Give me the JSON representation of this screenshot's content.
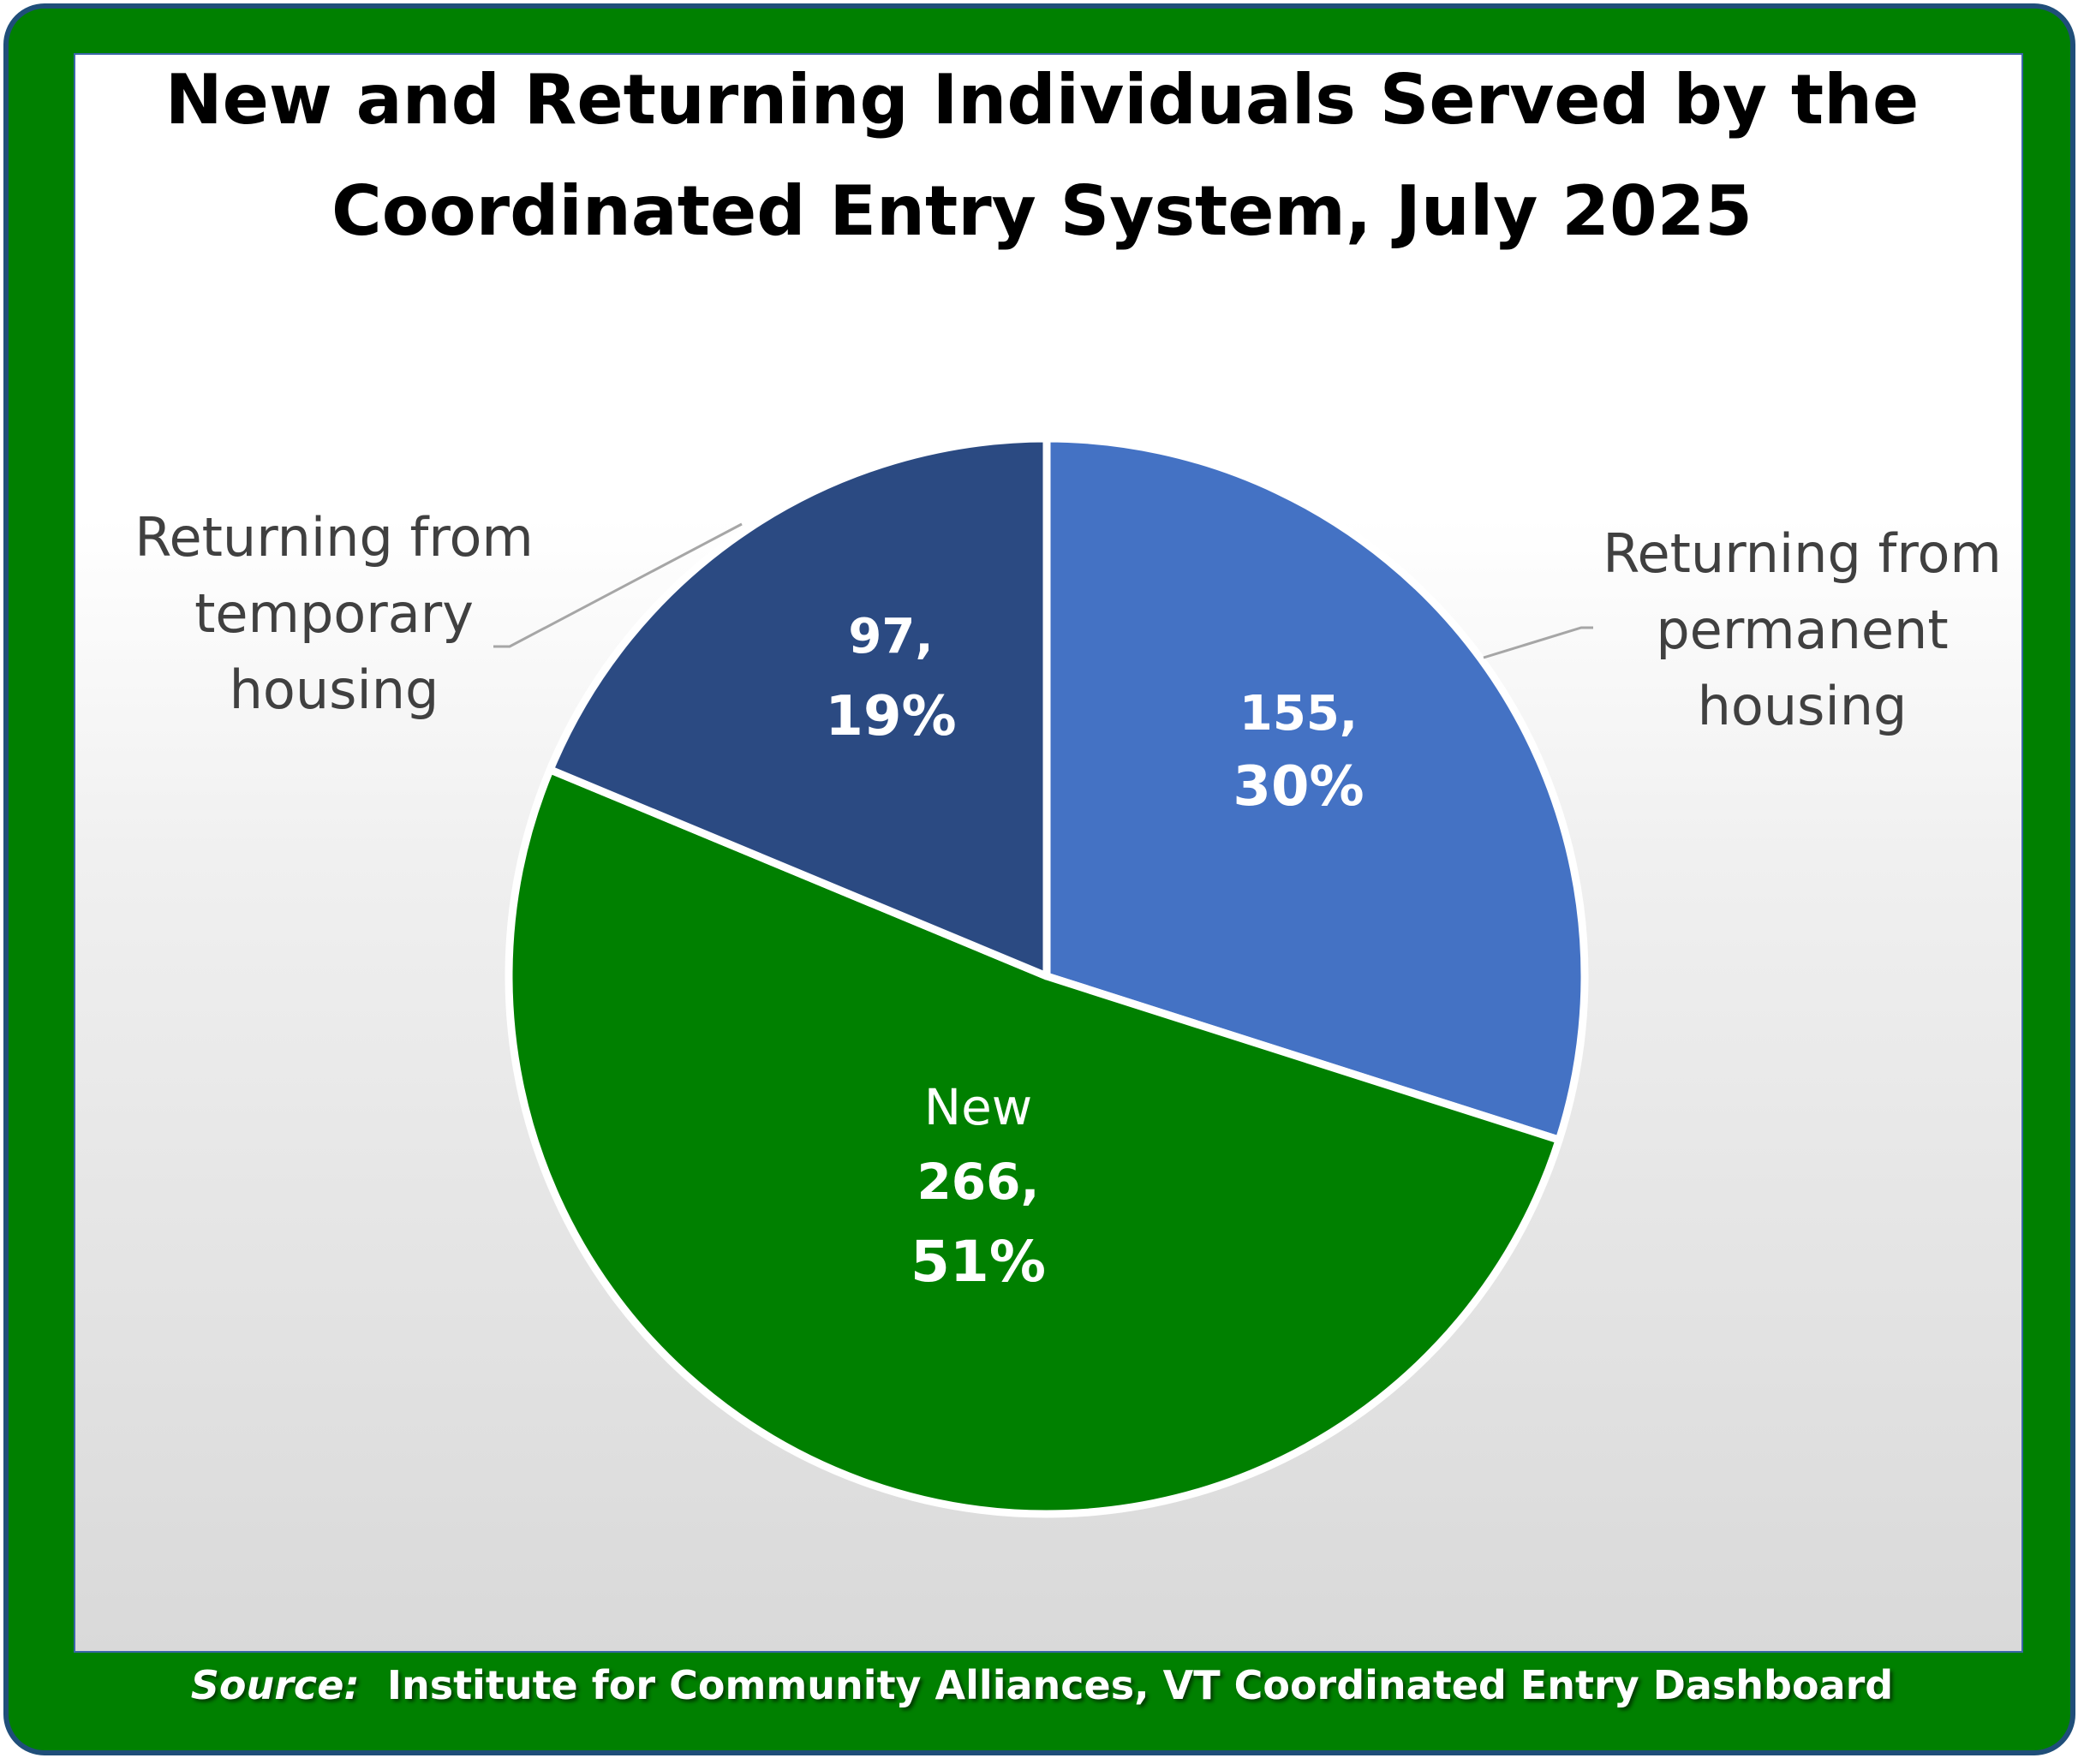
{
  "chart_data": {
    "type": "pie",
    "title": "New and Returning Individuals Served by the Coordinated Entry System, July 2025",
    "title_lines": [
      "New and Returning Individuals Served by the",
      "Coordinated Entry System, July 2025"
    ],
    "slices": [
      {
        "category": "Returning from permanent housing",
        "label_lines": [
          "Returning from",
          "permanent",
          "housing"
        ],
        "value": 155,
        "value_text": "155,",
        "percent": 30,
        "percent_text": "30%",
        "color": "#4472c4"
      },
      {
        "category": "New",
        "label_lines": [
          "New"
        ],
        "value": 266,
        "value_text": "266,",
        "percent": 51,
        "percent_text": "51%",
        "color": "#008000"
      },
      {
        "category": "Returning from temporary housing",
        "label_lines": [
          "Returning from",
          "temporary",
          "housing"
        ],
        "value": 97,
        "value_text": "97,",
        "percent": 19,
        "percent_text": "19%",
        "color": "#2b4a82"
      }
    ],
    "legend": "none"
  },
  "source": {
    "prefix": "Source:",
    "text": "Institute for Community Alliances, VT Coordinated Entry Dashboard"
  },
  "colors": {
    "frame": "#008000",
    "frame_border": "#1f4e79",
    "slice_separator": "#ffffff",
    "callout_text": "#404040",
    "leader_line": "#a6a6a6"
  }
}
